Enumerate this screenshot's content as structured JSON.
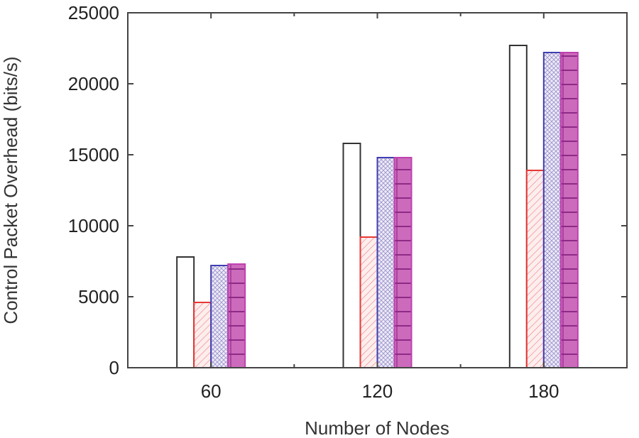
{
  "chart_data": {
    "type": "bar",
    "title": "",
    "xlabel": "Number of Nodes",
    "ylabel": "Control Packet Overhead (bits/s)",
    "categories": [
      "60",
      "120",
      "180"
    ],
    "ylim": [
      0,
      25000
    ],
    "yticks": [
      0,
      5000,
      10000,
      15000,
      20000,
      25000
    ],
    "grid": false,
    "legend": "none",
    "series": [
      {
        "values": [
          7800,
          15800,
          22700
        ],
        "style": {
          "stroke": "#333333",
          "fill": "#ffffff",
          "pattern": "none"
        }
      },
      {
        "values": [
          4600,
          9200,
          13900
        ],
        "style": {
          "stroke": "#e53935",
          "fill": "#fde8e8",
          "pattern": "diagonal"
        }
      },
      {
        "values": [
          7200,
          14800,
          22200
        ],
        "style": {
          "stroke": "#3f3fb0",
          "fill": "#e8e4f4",
          "pattern": "crosshatch"
        }
      },
      {
        "values": [
          7300,
          14800,
          22200
        ],
        "style": {
          "stroke": "#c040b0",
          "fill": "#c866b8",
          "pattern": "horizontal"
        }
      }
    ]
  }
}
